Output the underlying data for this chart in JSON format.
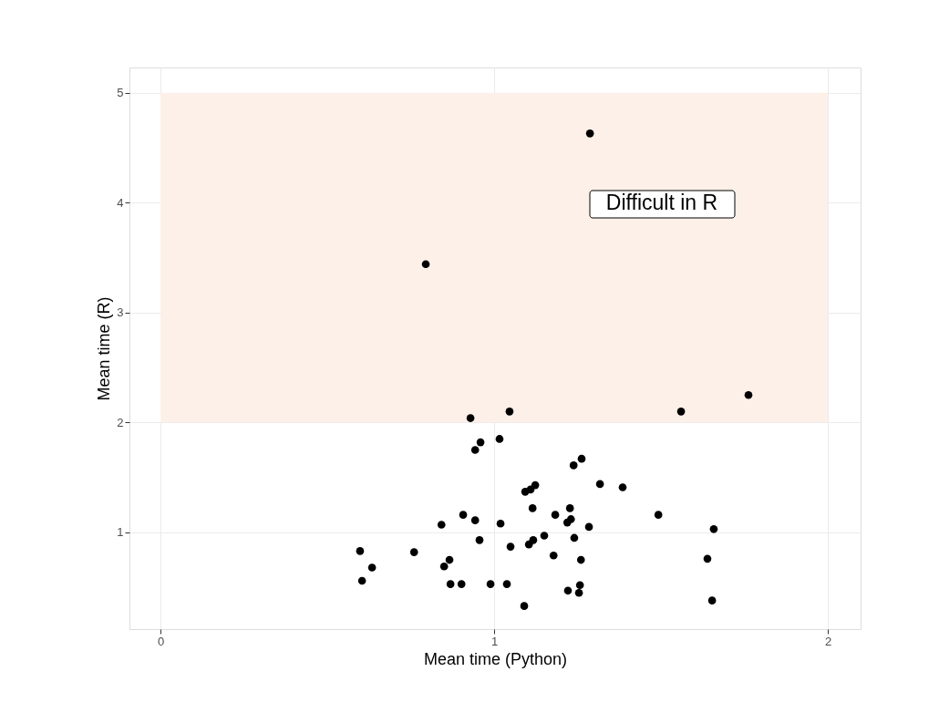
{
  "chart_data": {
    "type": "scatter",
    "xlabel": "Mean time (Python)",
    "ylabel": "Mean time (R)",
    "xlim": [
      -0.093,
      2.098
    ],
    "ylim": [
      0.12,
      5.23
    ],
    "xticks": [
      0,
      1,
      2
    ],
    "yticks": [
      1,
      2,
      3,
      4,
      5
    ],
    "grid": true,
    "marker": "circle",
    "bands": [
      {
        "axis": "y",
        "from": 2,
        "to": 5,
        "color": "#fdf0e8"
      }
    ],
    "annotations": [
      "Difficult in R"
    ],
    "series": [
      {
        "color": "#000000",
        "x": [
          1.287,
          0.795,
          1.762,
          1.56,
          0.929,
          1.046,
          0.959,
          0.943,
          1.016,
          1.262,
          1.238,
          1.317,
          1.385,
          1.123,
          1.109,
          1.093,
          1.115,
          1.227,
          1.23,
          1.219,
          1.183,
          1.284,
          1.492,
          1.658,
          0.907,
          0.943,
          1.019,
          0.842,
          1.15,
          1.24,
          1.117,
          1.104,
          0.956,
          1.049,
          0.76,
          0.598,
          1.178,
          0.866,
          1.26,
          1.639,
          0.634,
          0.85,
          0.604,
          0.869,
          0.902,
          0.989,
          1.038,
          1.257,
          1.221,
          1.254,
          1.09,
          1.653
        ],
        "values": [
          4.63,
          3.44,
          2.25,
          2.1,
          2.04,
          2.1,
          1.82,
          1.75,
          1.85,
          1.67,
          1.61,
          1.44,
          1.41,
          1.43,
          1.39,
          1.37,
          1.22,
          1.22,
          1.12,
          1.09,
          1.16,
          1.05,
          1.16,
          1.03,
          1.16,
          1.11,
          1.08,
          1.07,
          0.97,
          0.95,
          0.93,
          0.89,
          0.93,
          0.87,
          0.82,
          0.83,
          0.79,
          0.75,
          0.75,
          0.76,
          0.68,
          0.69,
          0.56,
          0.53,
          0.53,
          0.53,
          0.53,
          0.52,
          0.47,
          0.45,
          0.33,
          0.38
        ]
      }
    ]
  }
}
